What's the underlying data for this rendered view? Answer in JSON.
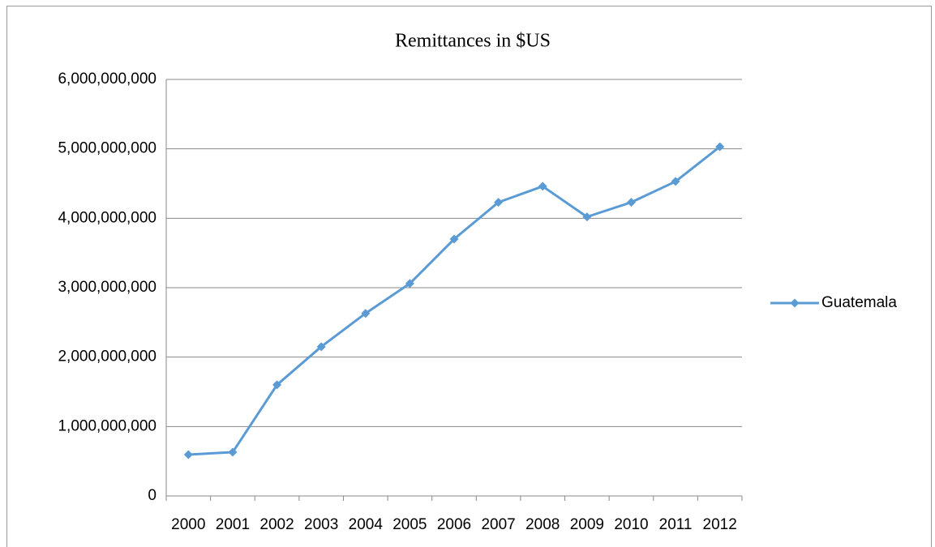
{
  "chart_data": {
    "type": "line",
    "title": "Remittances in $US",
    "categories": [
      "2000",
      "2001",
      "2002",
      "2003",
      "2004",
      "2005",
      "2006",
      "2007",
      "2008",
      "2009",
      "2010",
      "2011",
      "2012"
    ],
    "series": [
      {
        "name": "Guatemala",
        "color": "#5b9bd5",
        "values": [
          596000000,
          630000000,
          1600000000,
          2150000000,
          2630000000,
          3060000000,
          3700000000,
          4230000000,
          4460000000,
          4020000000,
          4230000000,
          4530000000,
          5030000000
        ]
      }
    ],
    "ylim": [
      0,
      6000000000
    ],
    "yticks": [
      0,
      {
        "value": 1000000000,
        "label": "1,000,000,000"
      },
      {
        "value": 2000000000,
        "label": "2,000,000,000"
      },
      {
        "value": 3000000000,
        "label": "3,000,000,000"
      },
      {
        "value": 4000000000,
        "label": "4,000,000,000"
      },
      {
        "value": 5000000000,
        "label": "5,000,000,000"
      },
      {
        "value": 6000000000,
        "label": "6,000,000,000"
      }
    ],
    "grid": true,
    "legend": "right"
  }
}
